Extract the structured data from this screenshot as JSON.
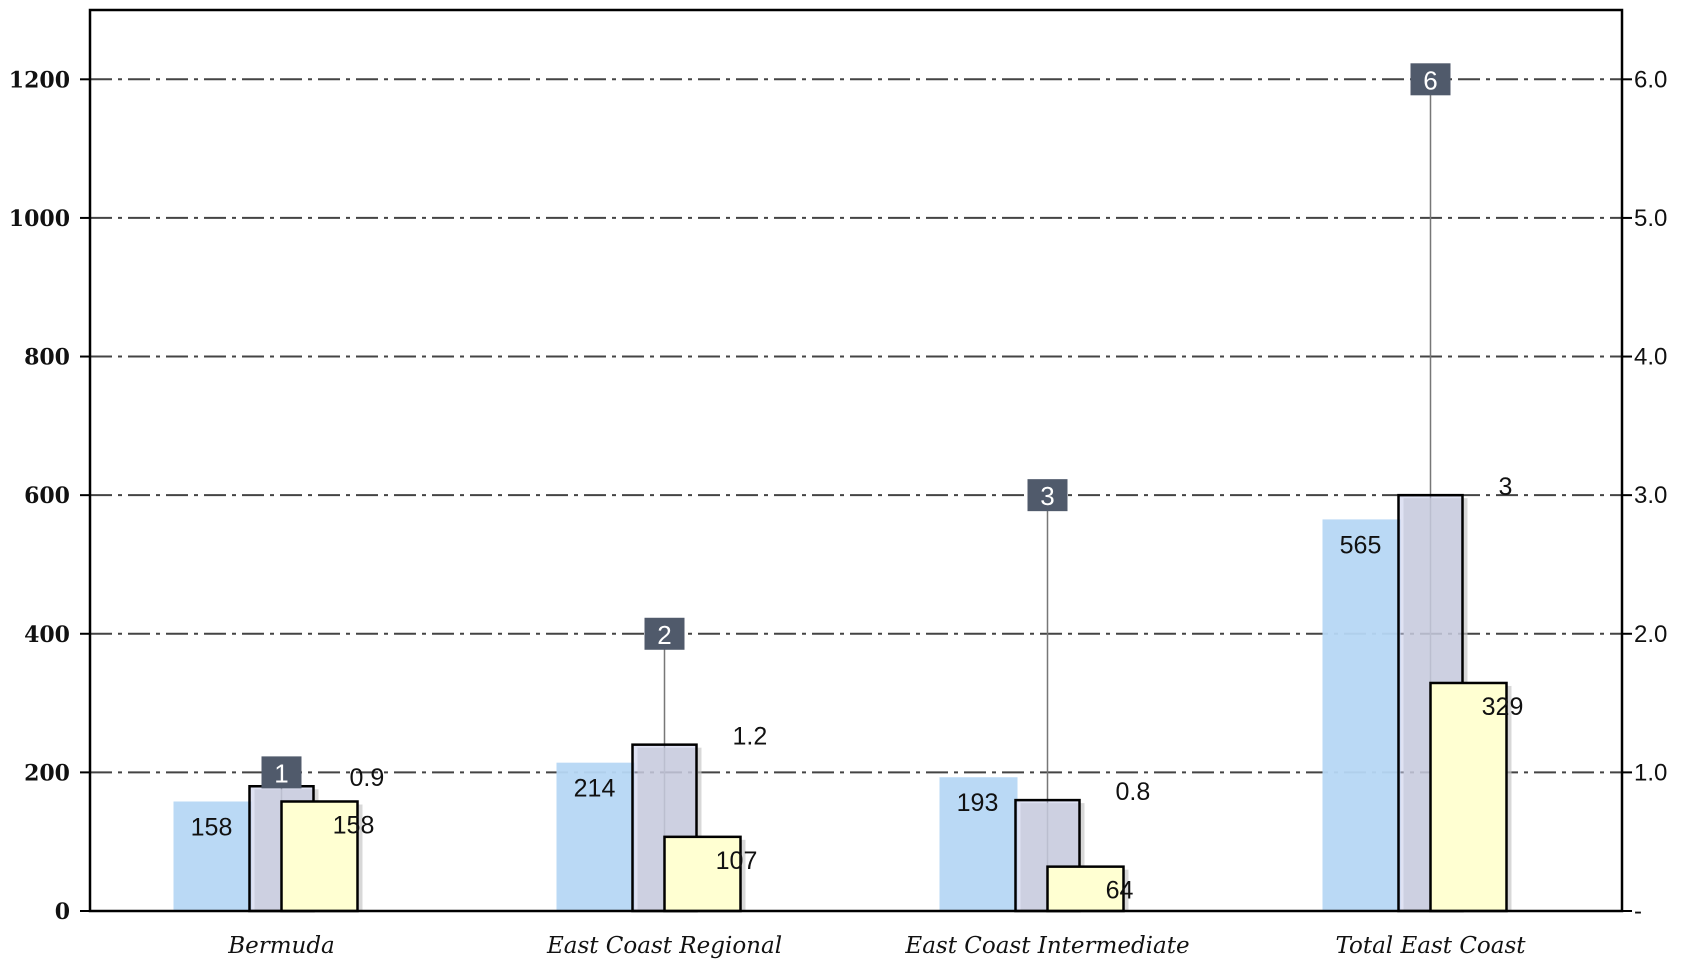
{
  "chart_data": {
    "type": "bar",
    "categories": [
      "Bermuda",
      "East Coast Regional",
      "East Coast Intermediate",
      "Total East Coast"
    ],
    "series": [
      {
        "values": [
          158,
          214,
          193,
          565
        ],
        "axis": "left",
        "color": "#b6d7f4"
      },
      {
        "values": [
          0.9,
          1.2,
          0.8,
          3
        ],
        "axis": "right",
        "color": "#c4cbe9"
      },
      {
        "values": [
          158,
          107,
          64,
          329
        ],
        "axis": "left",
        "color": "#ffffd2"
      },
      {
        "values": [
          1,
          2,
          3,
          6
        ],
        "axis": "left",
        "color": "#505a6b"
      }
    ],
    "labels": {
      "s1": [
        "158",
        "214",
        "193",
        "565"
      ],
      "s2": [
        "0.9",
        "1.2",
        "0.8",
        "3"
      ],
      "s3": [
        "158",
        "107",
        "64",
        "329"
      ],
      "s4": [
        "1",
        "2",
        "3",
        "6"
      ]
    },
    "y_left": {
      "range": [
        0,
        1300
      ],
      "ticks": [
        0,
        200,
        400,
        600,
        800,
        1000,
        1200
      ],
      "tick_labels": [
        "0",
        "200",
        "400",
        "600",
        "800",
        "1000",
        "1200"
      ]
    },
    "y_right": {
      "range": [
        0,
        6.5
      ],
      "ticks": [
        0,
        1,
        2,
        3,
        4,
        5,
        6
      ],
      "tick_labels": [
        "-",
        "1.0",
        "2.0",
        "3.0",
        "4.0",
        "5.0",
        "6.0"
      ]
    },
    "grid": true,
    "grid_style": "dash-dot",
    "legend": "none"
  }
}
